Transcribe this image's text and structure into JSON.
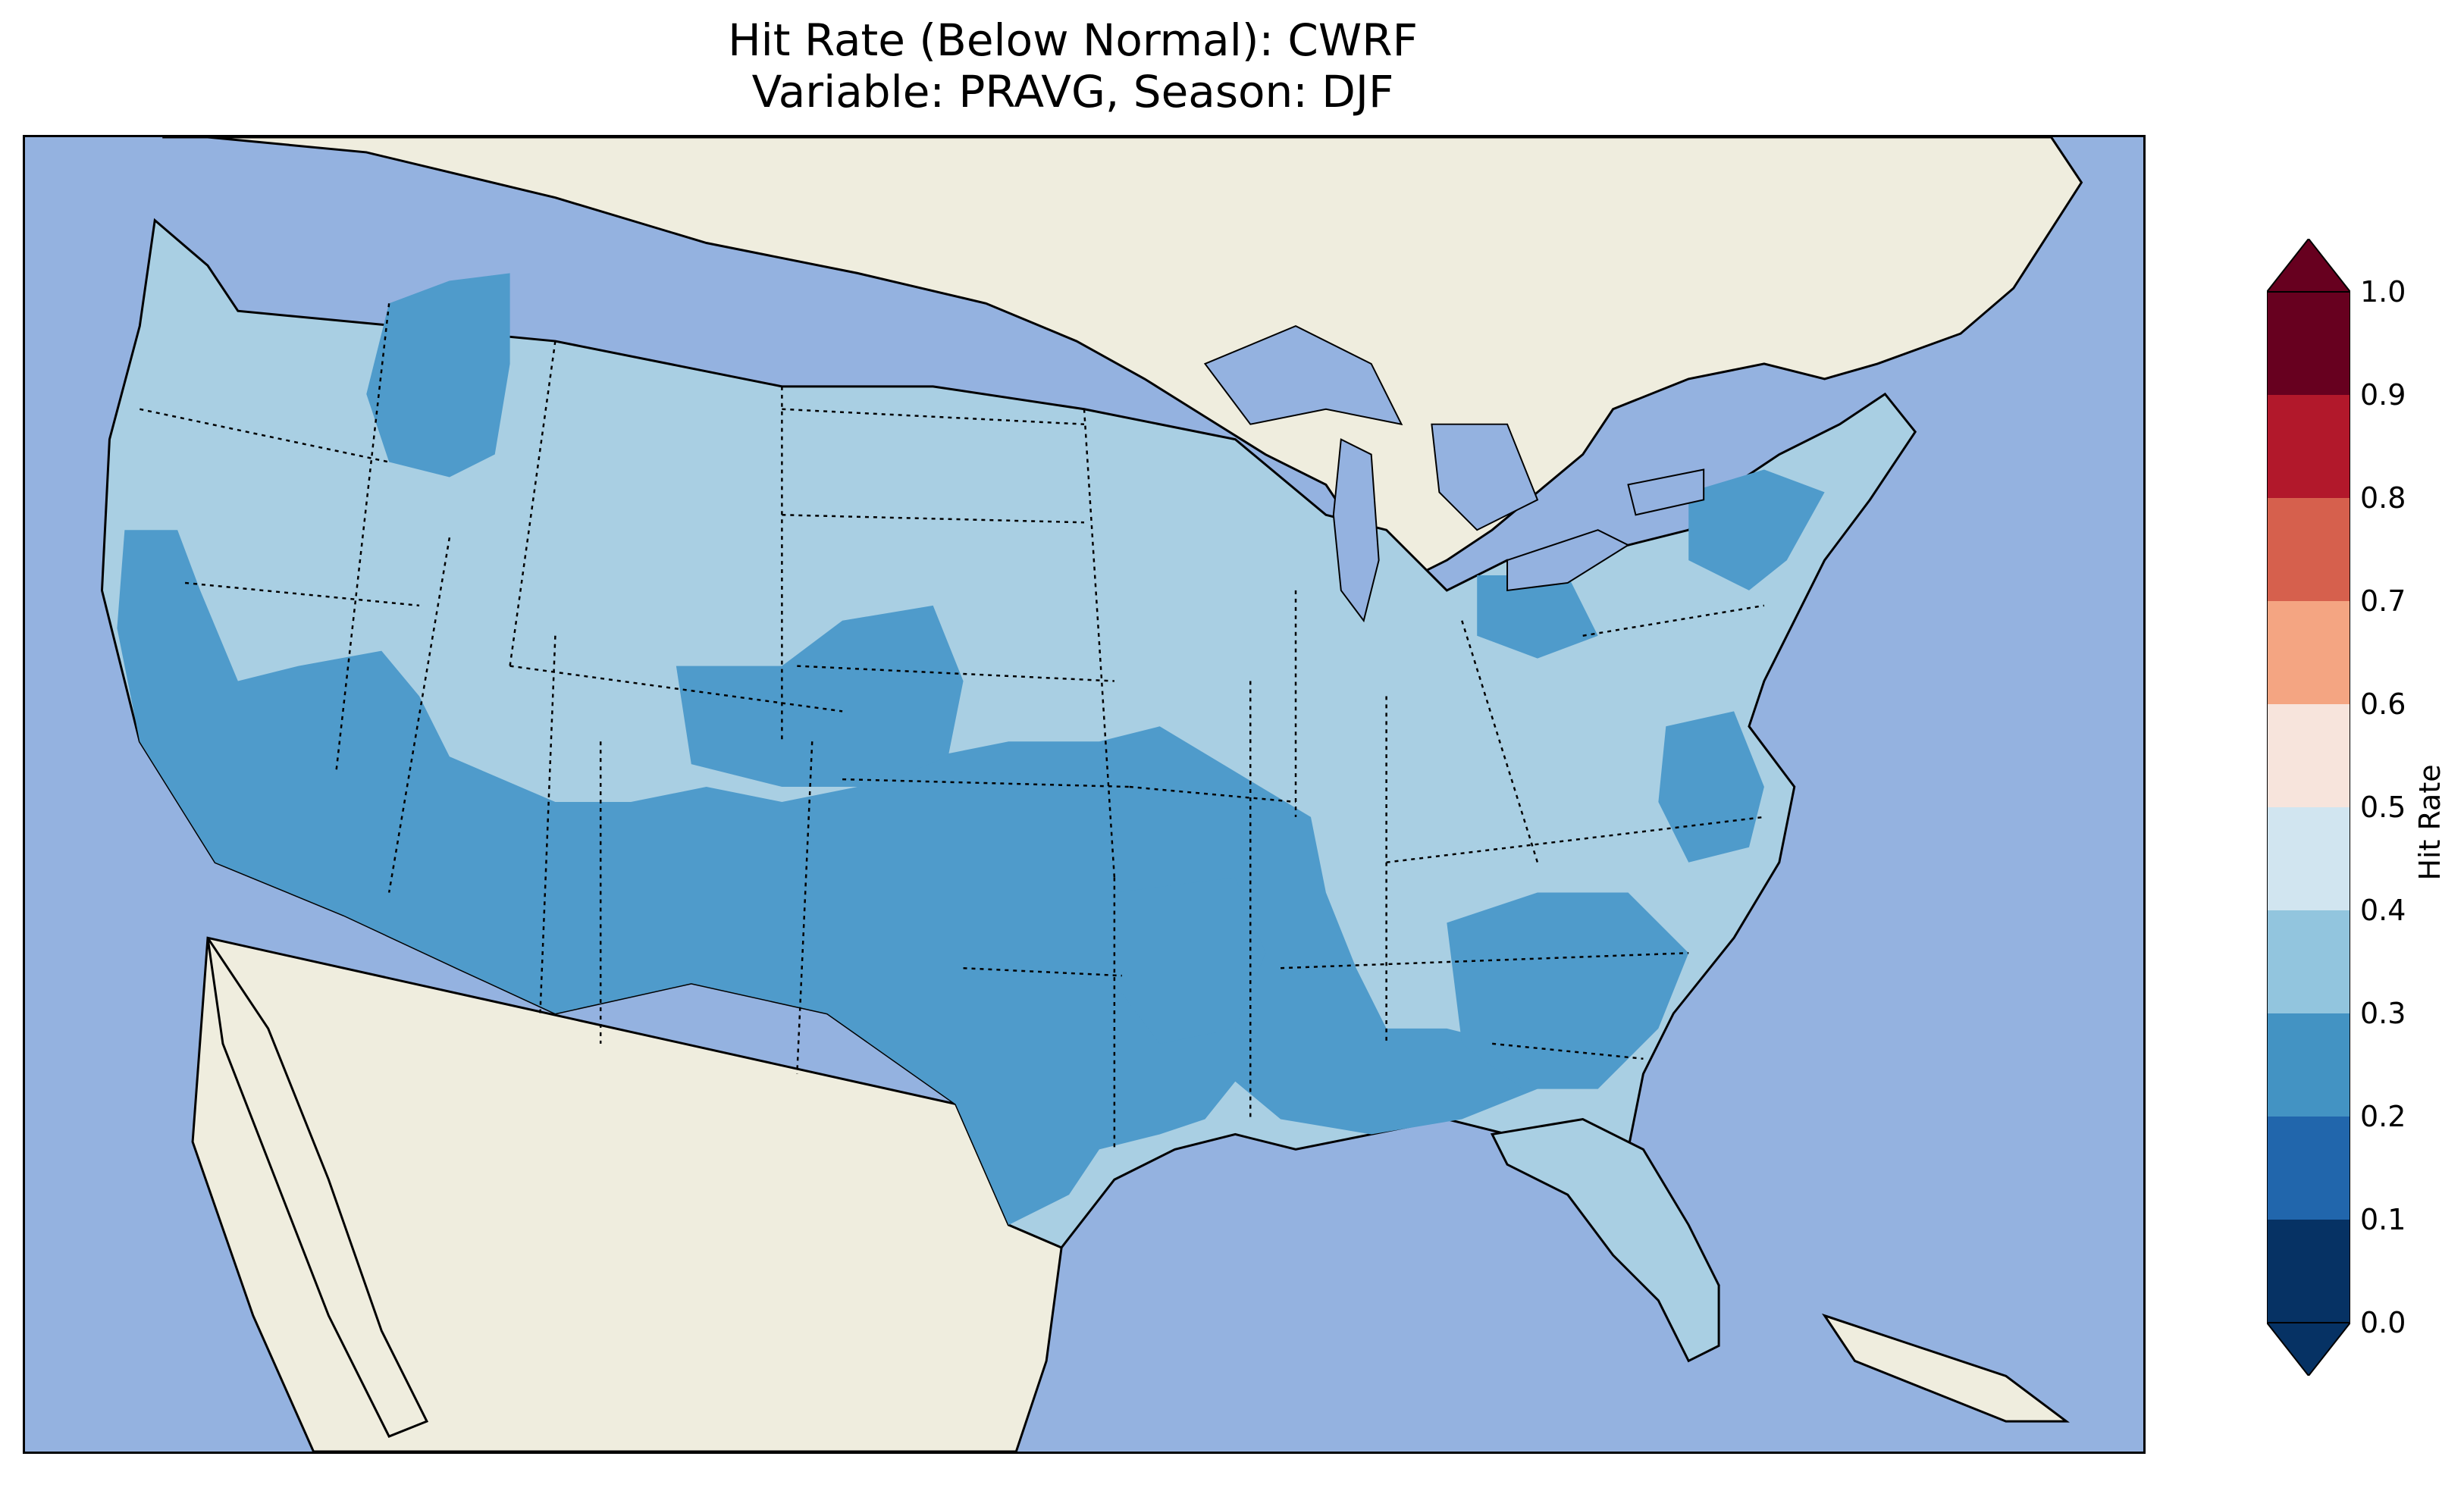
{
  "title": {
    "line1": "Hit Rate (Below Normal): CWRF",
    "line2": "Variable: PRAVG, Season: DJF"
  },
  "map": {
    "projection": "continental United States",
    "colors": {
      "ocean": "#94b2e0",
      "land": "#efedde",
      "lakes": "#94b2e0",
      "boundary": "#000000"
    },
    "field_description_levels": [
      "0.2-0.3",
      "0.3-0.4"
    ]
  },
  "colorbar": {
    "label": "Hit Rate",
    "ticks": [
      "0.0",
      "0.1",
      "0.2",
      "0.3",
      "0.4",
      "0.5",
      "0.6",
      "0.7",
      "0.8",
      "0.9",
      "1.0"
    ],
    "extend": "both",
    "bins": [
      {
        "range": "0.0-0.1",
        "color": "#063264"
      },
      {
        "range": "0.1-0.2",
        "color": "#2166ac"
      },
      {
        "range": "0.2-0.3",
        "color": "#4393c3"
      },
      {
        "range": "0.3-0.4",
        "color": "#92c5de"
      },
      {
        "range": "0.4-0.5",
        "color": "#d1e5f0"
      },
      {
        "range": "0.5-0.6",
        "color": "#f7e4dc"
      },
      {
        "range": "0.6-0.7",
        "color": "#f4a582"
      },
      {
        "range": "0.7-0.8",
        "color": "#d6604d"
      },
      {
        "range": "0.8-0.9",
        "color": "#b2182b"
      },
      {
        "range": "0.9-1.0",
        "color": "#67001f"
      }
    ],
    "under_color": "#063264",
    "over_color": "#67001f"
  }
}
